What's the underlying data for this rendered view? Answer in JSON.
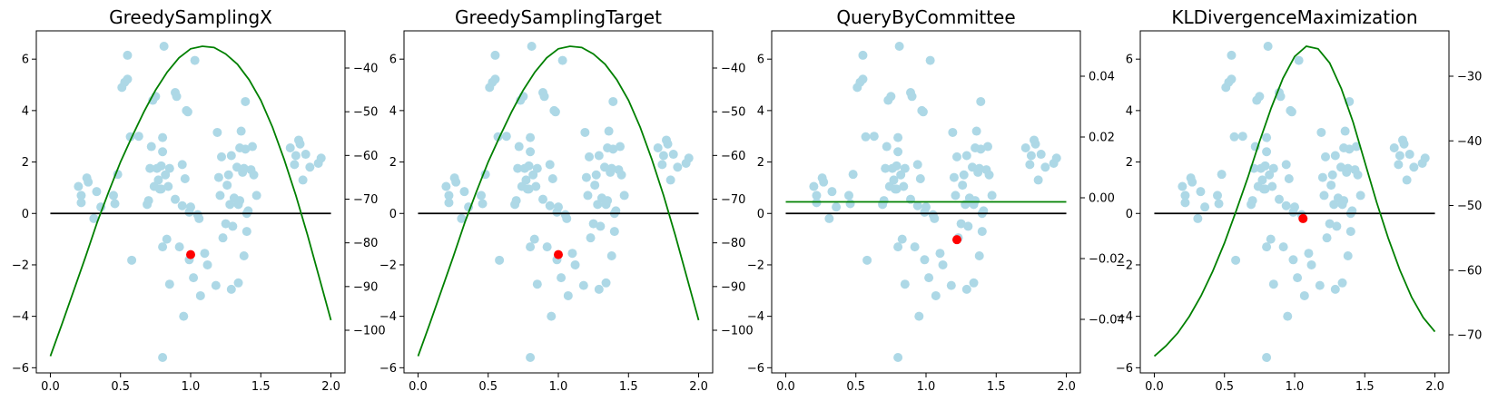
{
  "colors": {
    "scatter": "#add8e6",
    "curve": "#008000",
    "baseline": "#000000",
    "point": "#ff0000"
  },
  "scatter_points": [
    [
      0.2,
      1.05
    ],
    [
      0.22,
      0.42
    ],
    [
      0.22,
      0.7
    ],
    [
      0.26,
      1.38
    ],
    [
      0.27,
      1.22
    ],
    [
      0.31,
      -0.2
    ],
    [
      0.33,
      0.85
    ],
    [
      0.36,
      0.25
    ],
    [
      0.45,
      0.7
    ],
    [
      0.46,
      0.38
    ],
    [
      0.48,
      1.52
    ],
    [
      0.51,
      4.9
    ],
    [
      0.53,
      5.1
    ],
    [
      0.55,
      6.15
    ],
    [
      0.55,
      5.22
    ],
    [
      0.57,
      2.98
    ],
    [
      0.58,
      -1.82
    ],
    [
      0.63,
      3.0
    ],
    [
      0.69,
      0.35
    ],
    [
      0.7,
      0.5
    ],
    [
      0.71,
      1.75
    ],
    [
      0.72,
      2.6
    ],
    [
      0.73,
      4.4
    ],
    [
      0.74,
      1.05
    ],
    [
      0.75,
      4.55
    ],
    [
      0.76,
      1.75
    ],
    [
      0.77,
      1.3
    ],
    [
      0.78,
      0.95
    ],
    [
      0.79,
      1.85
    ],
    [
      0.79,
      0.95
    ],
    [
      0.8,
      2.4
    ],
    [
      0.8,
      2.95
    ],
    [
      0.8,
      -1.3
    ],
    [
      0.8,
      -5.6
    ],
    [
      0.81,
      6.5
    ],
    [
      0.82,
      1.5
    ],
    [
      0.83,
      -1.0
    ],
    [
      0.84,
      1.05
    ],
    [
      0.85,
      1.75
    ],
    [
      0.85,
      -2.75
    ],
    [
      0.89,
      0.55
    ],
    [
      0.89,
      4.7
    ],
    [
      0.9,
      4.55
    ],
    [
      0.92,
      -1.3
    ],
    [
      0.94,
      0.3
    ],
    [
      0.94,
      1.9
    ],
    [
      0.95,
      -4.0
    ],
    [
      0.96,
      1.35
    ],
    [
      0.97,
      4.0
    ],
    [
      0.98,
      3.95
    ],
    [
      0.99,
      0.05
    ],
    [
      0.99,
      -1.8
    ],
    [
      1.0,
      0.25
    ],
    [
      1.02,
      -2.5
    ],
    [
      1.03,
      5.95
    ],
    [
      1.05,
      -0.05
    ],
    [
      1.06,
      -0.2
    ],
    [
      1.07,
      -3.2
    ],
    [
      1.1,
      -1.55
    ],
    [
      1.12,
      -2.0
    ],
    [
      1.18,
      -2.8
    ],
    [
      1.19,
      3.15
    ],
    [
      1.2,
      1.4
    ],
    [
      1.21,
      0.7
    ],
    [
      1.22,
      2.2
    ],
    [
      1.23,
      -0.95
    ],
    [
      1.25,
      -0.4
    ],
    [
      1.26,
      1.1
    ],
    [
      1.27,
      1.5
    ],
    [
      1.28,
      0.35
    ],
    [
      1.29,
      2.25
    ],
    [
      1.29,
      -2.95
    ],
    [
      1.3,
      -0.5
    ],
    [
      1.31,
      0.6
    ],
    [
      1.33,
      1.8
    ],
    [
      1.34,
      -2.7
    ],
    [
      1.34,
      0.35
    ],
    [
      1.35,
      2.55
    ],
    [
      1.35,
      0.5
    ],
    [
      1.36,
      3.2
    ],
    [
      1.37,
      1.6
    ],
    [
      1.38,
      -1.65
    ],
    [
      1.38,
      1.75
    ],
    [
      1.39,
      4.35
    ],
    [
      1.39,
      2.5
    ],
    [
      1.4,
      -0.7
    ],
    [
      1.4,
      0.0
    ],
    [
      1.41,
      0.1
    ],
    [
      1.43,
      1.7
    ],
    [
      1.44,
      2.6
    ],
    [
      1.45,
      1.5
    ],
    [
      1.47,
      0.7
    ],
    [
      1.71,
      2.55
    ],
    [
      1.74,
      1.9
    ],
    [
      1.75,
      2.25
    ],
    [
      1.77,
      2.85
    ],
    [
      1.78,
      2.7
    ],
    [
      1.8,
      1.3
    ],
    [
      1.82,
      2.3
    ],
    [
      1.85,
      1.8
    ],
    [
      1.91,
      1.95
    ],
    [
      1.93,
      2.15
    ]
  ],
  "panels": [
    {
      "title": "GreedySamplingX",
      "y2ticks": [
        -40,
        -50,
        -60,
        -70,
        -80,
        -90,
        -100
      ],
      "curve_y": [
        -5.55,
        -4.3,
        -3.0,
        -1.7,
        -0.35,
        0.85,
        2.0,
        3.0,
        3.95,
        4.8,
        5.5,
        6.05,
        6.4,
        6.5,
        6.45,
        6.2,
        5.8,
        5.2,
        4.4,
        3.35,
        2.1,
        0.7,
        -0.85,
        -2.5,
        -4.15
      ],
      "selected_point": [
        1.0,
        -1.6
      ]
    },
    {
      "title": "GreedySamplingTarget",
      "y2ticks": [
        -40,
        -50,
        -60,
        -70,
        -80,
        -90,
        -100
      ],
      "curve_y": [
        -5.55,
        -4.3,
        -3.0,
        -1.7,
        -0.35,
        0.85,
        2.0,
        3.0,
        3.95,
        4.8,
        5.5,
        6.05,
        6.4,
        6.5,
        6.45,
        6.2,
        5.8,
        5.2,
        4.4,
        3.35,
        2.1,
        0.7,
        -0.85,
        -2.5,
        -4.15
      ],
      "selected_point": [
        1.0,
        -1.6
      ]
    },
    {
      "title": "QueryByCommittee",
      "y2ticks": [
        0.04,
        0.02,
        0.0,
        -0.02,
        -0.04
      ],
      "curve_y": [
        0.45,
        0.45,
        0.45,
        0.45,
        0.45,
        0.45,
        0.45,
        0.45,
        0.45,
        0.45,
        0.45,
        0.45,
        0.45,
        0.45,
        0.45,
        0.45,
        0.45,
        0.45,
        0.45,
        0.45,
        0.45,
        0.45,
        0.45,
        0.45,
        0.45
      ],
      "selected_point": [
        1.22,
        -1.02
      ]
    },
    {
      "title": "KLDivergenceMaximization",
      "y2ticks": [
        -30,
        -40,
        -50,
        -60,
        -70
      ],
      "curve_y": [
        -5.55,
        -5.15,
        -4.65,
        -4.0,
        -3.2,
        -2.25,
        -1.15,
        0.1,
        1.4,
        2.8,
        4.1,
        5.25,
        6.1,
        6.5,
        6.4,
        5.85,
        4.85,
        3.55,
        2.0,
        0.45,
        -0.95,
        -2.2,
        -3.25,
        -4.05,
        -4.6
      ],
      "selected_point": [
        1.06,
        -0.2
      ]
    }
  ],
  "chart_data": [
    {
      "type": "scatter",
      "title": "GreedySamplingX",
      "xlim": [
        -0.1,
        2.1
      ],
      "ylim": [
        -6.2,
        7.1
      ],
      "xticks": [
        0.0,
        0.5,
        1.0,
        1.5,
        2.0
      ],
      "yticks": [
        -6,
        -4,
        -2,
        0,
        2,
        4,
        6
      ],
      "secondary_yticks": [
        -40,
        -50,
        -60,
        -70,
        -80,
        -90,
        -100
      ],
      "series": [
        {
          "description": "training samples (light blue)",
          "source": "scatter_points"
        },
        {
          "description": "objective curve (green, secondary axis)",
          "source": "panels.0.curve_y"
        },
        {
          "description": "baseline y=0 (black)",
          "x": [
            0,
            2
          ],
          "y": [
            0,
            0
          ]
        },
        {
          "description": "selected sample (red)",
          "x": [
            1.0
          ],
          "y": [
            -1.6
          ]
        }
      ]
    },
    {
      "type": "scatter",
      "title": "GreedySamplingTarget",
      "xlim": [
        -0.1,
        2.1
      ],
      "ylim": [
        -6.2,
        7.1
      ],
      "xticks": [
        0.0,
        0.5,
        1.0,
        1.5,
        2.0
      ],
      "yticks": [
        -6,
        -4,
        -2,
        0,
        2,
        4,
        6
      ],
      "secondary_yticks": [
        -40,
        -50,
        -60,
        -70,
        -80,
        -90,
        -100
      ],
      "series": [
        {
          "description": "training samples (light blue)",
          "source": "scatter_points"
        },
        {
          "description": "objective curve (green, secondary axis)",
          "source": "panels.1.curve_y"
        },
        {
          "description": "baseline y=0 (black)",
          "x": [
            0,
            2
          ],
          "y": [
            0,
            0
          ]
        },
        {
          "description": "selected sample (red)",
          "x": [
            1.0
          ],
          "y": [
            -1.6
          ]
        }
      ]
    },
    {
      "type": "scatter",
      "title": "QueryByCommittee",
      "xlim": [
        -0.1,
        2.1
      ],
      "ylim": [
        -6.2,
        7.1
      ],
      "xticks": [
        0.0,
        0.5,
        1.0,
        1.5,
        2.0
      ],
      "yticks": [
        -6,
        -4,
        -2,
        0,
        2,
        4,
        6
      ],
      "secondary_yticks": [
        0.04,
        0.02,
        0.0,
        -0.02,
        -0.04
      ],
      "series": [
        {
          "description": "training samples (light blue)",
          "source": "scatter_points"
        },
        {
          "description": "objective curve (green, flat at 0.00 on secondary axis)",
          "source": "panels.2.curve_y"
        },
        {
          "description": "baseline y=0 (black)",
          "x": [
            0,
            2
          ],
          "y": [
            0,
            0
          ]
        },
        {
          "description": "selected sample (red)",
          "x": [
            1.22
          ],
          "y": [
            -1.02
          ]
        }
      ]
    },
    {
      "type": "scatter",
      "title": "KLDivergenceMaximization",
      "xlim": [
        -0.1,
        2.1
      ],
      "ylim": [
        -6.2,
        7.1
      ],
      "xticks": [
        0.0,
        0.5,
        1.0,
        1.5,
        2.0
      ],
      "yticks": [
        -6,
        -4,
        -2,
        0,
        2,
        4,
        6
      ],
      "secondary_yticks": [
        -30,
        -40,
        -50,
        -60,
        -70
      ],
      "series": [
        {
          "description": "training samples (light blue)",
          "source": "scatter_points"
        },
        {
          "description": "objective curve (green, secondary axis)",
          "source": "panels.3.curve_y"
        },
        {
          "description": "baseline y=0 (black)",
          "x": [
            0,
            2
          ],
          "y": [
            0,
            0
          ]
        },
        {
          "description": "selected sample (red)",
          "x": [
            1.06
          ],
          "y": [
            -0.2
          ]
        }
      ]
    }
  ]
}
